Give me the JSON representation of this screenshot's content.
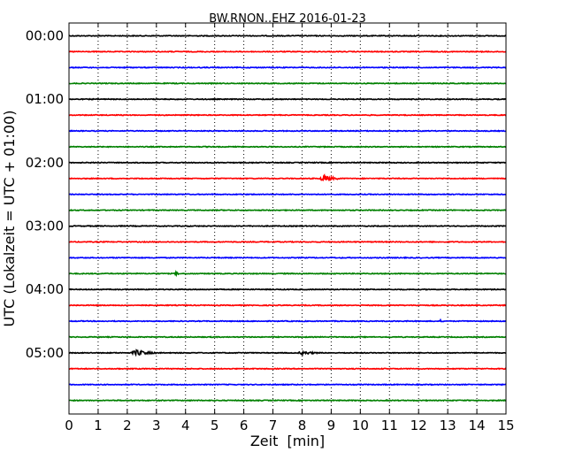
{
  "chart_data": {
    "type": "line",
    "title": "BW.RNON..EHZ 2016-01-23",
    "xlabel": "Zeit  [min]",
    "ylabel": "UTC (Lokalzeit = UTC + 01:00)",
    "xlim": [
      0,
      15
    ],
    "ylim_minutes": [
      0,
      360
    ],
    "x_ticks": [
      "0",
      "1",
      "2",
      "3",
      "4",
      "5",
      "6",
      "7",
      "8",
      "9",
      "10",
      "11",
      "12",
      "13",
      "14",
      "15"
    ],
    "y_ticks": [
      "00:00",
      "01:00",
      "02:00",
      "03:00",
      "04:00",
      "05:00"
    ],
    "grid": "vertical dotted",
    "line_colors": [
      "#000000",
      "#ff0000",
      "#0000ff",
      "#008000"
    ],
    "trace_interval_minutes": 15,
    "trace_count": 24,
    "events": [
      {
        "trace_start": "02:15",
        "minute_start": 8.6,
        "minute_end": 9.5,
        "amplitude": "large"
      },
      {
        "trace_start": "03:45",
        "minute_start": 3.6,
        "minute_end": 4.0,
        "amplitude": "small"
      },
      {
        "trace_start": "04:30",
        "minute_start": 12.7,
        "minute_end": 12.9,
        "amplitude": "small"
      },
      {
        "trace_start": "05:00",
        "minute_start": 2.1,
        "minute_end": 3.4,
        "amplitude": "medium"
      },
      {
        "trace_start": "05:00",
        "minute_start": 7.8,
        "minute_end": 9.2,
        "amplitude": "small"
      }
    ]
  }
}
